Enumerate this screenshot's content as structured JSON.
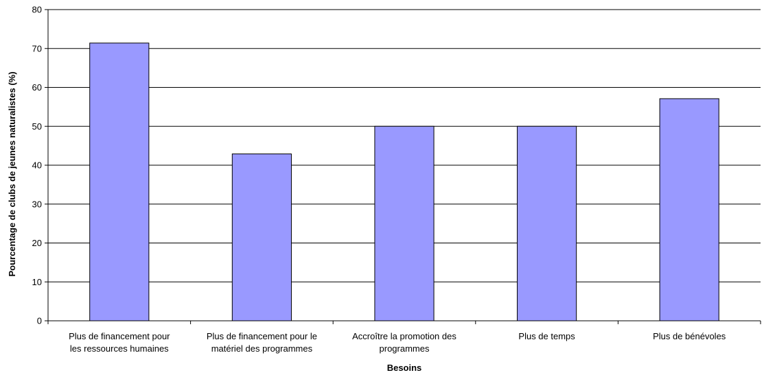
{
  "chart_data": {
    "type": "bar",
    "categories": [
      [
        "Plus de financement pour",
        "les ressources humaines"
      ],
      [
        "Plus de financement pour le",
        "matériel des programmes"
      ],
      [
        "Accroître la promotion des",
        "programmes"
      ],
      [
        "Plus de temps"
      ],
      [
        "Plus de bénévoles"
      ]
    ],
    "values": [
      71.4,
      42.9,
      50.0,
      50.0,
      57.1
    ],
    "xlabel": "Besoins",
    "ylabel": "Pourcentage de clubs de jeunes naturalistes (%)",
    "ylim": [
      0,
      80
    ],
    "yticks": [
      0,
      10,
      20,
      30,
      40,
      50,
      60,
      70,
      80
    ],
    "grid": true,
    "bar_color": "#9999FF",
    "bar_border_color": "#000000"
  }
}
